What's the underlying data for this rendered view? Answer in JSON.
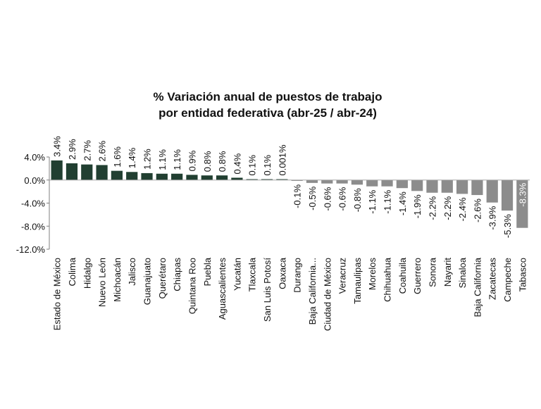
{
  "chart_data": {
    "type": "bar",
    "title": [
      "% Variación anual de puestos de trabajo",
      "por entidad federativa (abr-25 / abr-24)"
    ],
    "xlabel": "",
    "ylabel": "",
    "ylim": [
      -12,
      4
    ],
    "yticks": [
      4,
      0,
      -4,
      -8,
      -12
    ],
    "ytick_labels": [
      "4.0%",
      "0.0%",
      "-4.0%",
      "-8.0%",
      "-12.0%"
    ],
    "grid": false,
    "legend": "none",
    "colors": {
      "positive": "#213f31",
      "negative": "#8c8c8c"
    },
    "categories": [
      "Estado de México",
      "Colima",
      "Hidalgo",
      "Nuevo León",
      "Michoacán",
      "Jalisco",
      "Guanajuato",
      "Querétaro",
      "Chiapas",
      "Quintana Roo",
      "Puebla",
      "Aguascalientes",
      "Yucatán",
      "Tlaxcala",
      "San Luis Potosí",
      "Oaxaca",
      "Durango",
      "Baja California...",
      "Ciudad de México",
      "Veracruz",
      "Tamaulipas",
      "Morelos",
      "Chihuahua",
      "Coahuila",
      "Guerrero",
      "Sonora",
      "Nayarit",
      "Sinaloa",
      "Baja California",
      "Zacatecas",
      "Campeche",
      "Tabasco"
    ],
    "values": [
      3.4,
      2.9,
      2.7,
      2.6,
      1.6,
      1.4,
      1.2,
      1.1,
      1.1,
      0.9,
      0.8,
      0.8,
      0.4,
      0.1,
      0.1,
      0.001,
      -0.1,
      -0.5,
      -0.6,
      -0.6,
      -0.8,
      -1.1,
      -1.1,
      -1.4,
      -1.9,
      -2.2,
      -2.2,
      -2.4,
      -2.6,
      -3.9,
      -5.3,
      -8.3
    ],
    "data_labels": [
      "3.4%",
      "2.9%",
      "2.7%",
      "2.6%",
      "1.6%",
      "1.4%",
      "1.2%",
      "1.1%",
      "1.1%",
      "0.9%",
      "0.8%",
      "0.8%",
      "0.4%",
      "0.1%",
      "0.1%",
      "0.001%",
      "-0.1%",
      "-0.5%",
      "-0.6%",
      "-0.6%",
      "-0.8%",
      "-1.1%",
      "-1.1%",
      "-1.4%",
      "-1.9%",
      "-2.2%",
      "-2.2%",
      "-2.4%",
      "-2.6%",
      "-3.9%",
      "-5.3%",
      "-8.3%"
    ]
  }
}
